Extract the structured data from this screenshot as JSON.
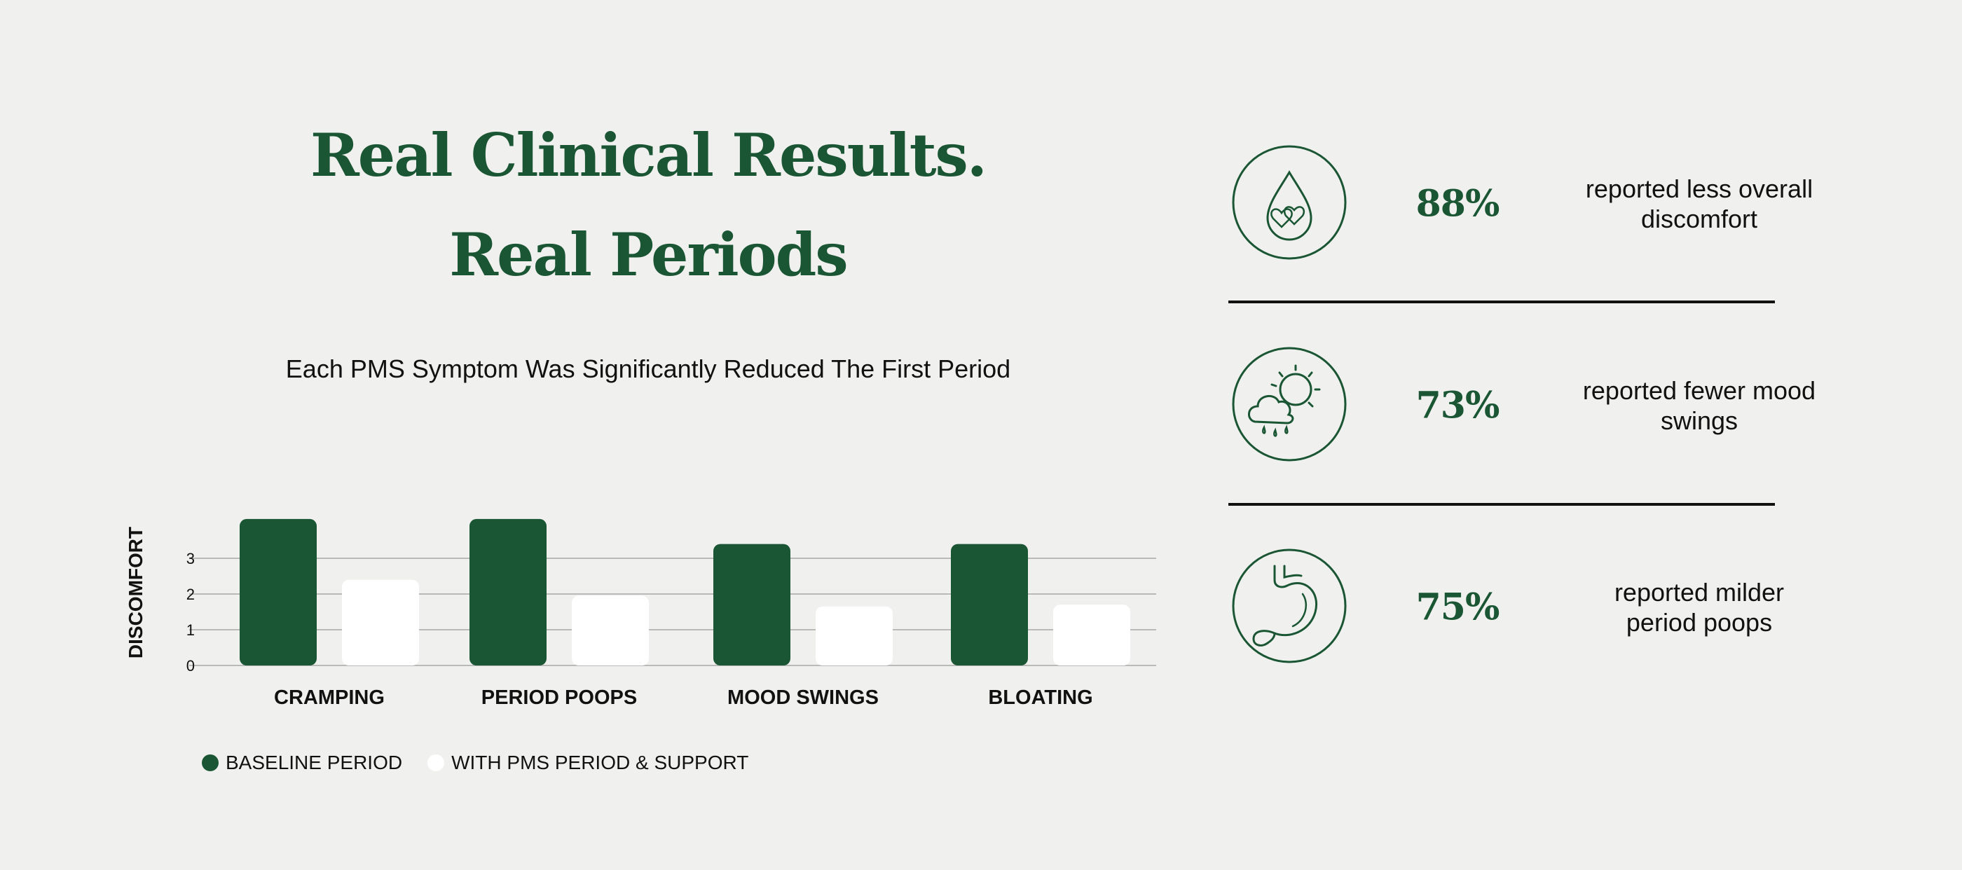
{
  "headline": {
    "line1": "Real Clinical Results.",
    "line2": "Real Periods"
  },
  "subtitle": "Each PMS Symptom Was Significantly Reduced The First Period",
  "colors": {
    "primary_green": "#1a5534",
    "white_bar": "#ffffff",
    "background": "#f0f1ee"
  },
  "chart_data": {
    "type": "bar",
    "categories": [
      "CRAMPING",
      "PERIOD POOPS",
      "MOOD SWINGS",
      "BLOATING"
    ],
    "series": [
      {
        "name": "BASELINE PERIOD",
        "color": "#1a5534",
        "values": [
          4.1,
          4.1,
          3.4,
          3.4
        ]
      },
      {
        "name": "WITH PMS PERIOD & SUPPORT",
        "color": "#ffffff",
        "values": [
          2.4,
          1.95,
          1.65,
          1.7
        ]
      }
    ],
    "ylabel": "DISCOMFORT",
    "xlabel": "",
    "yticks": [
      0,
      1,
      2,
      3
    ],
    "ylim": [
      0,
      4.2
    ],
    "grid": true,
    "legend_position": "bottom-left"
  },
  "stats": [
    {
      "icon": "blood-drop-hearts-icon",
      "percent": "88%",
      "text": "reported less overall discomfort",
      "line1": "reported less overall",
      "line2": "discomfort"
    },
    {
      "icon": "sun-cloud-rain-icon",
      "percent": "73%",
      "text": "reported fewer mood swings",
      "line1": "reported fewer mood",
      "line2": "swings"
    },
    {
      "icon": "stomach-icon",
      "percent": "75%",
      "text": "reported milder period poops",
      "line1": "reported milder",
      "line2": "period poops"
    }
  ]
}
